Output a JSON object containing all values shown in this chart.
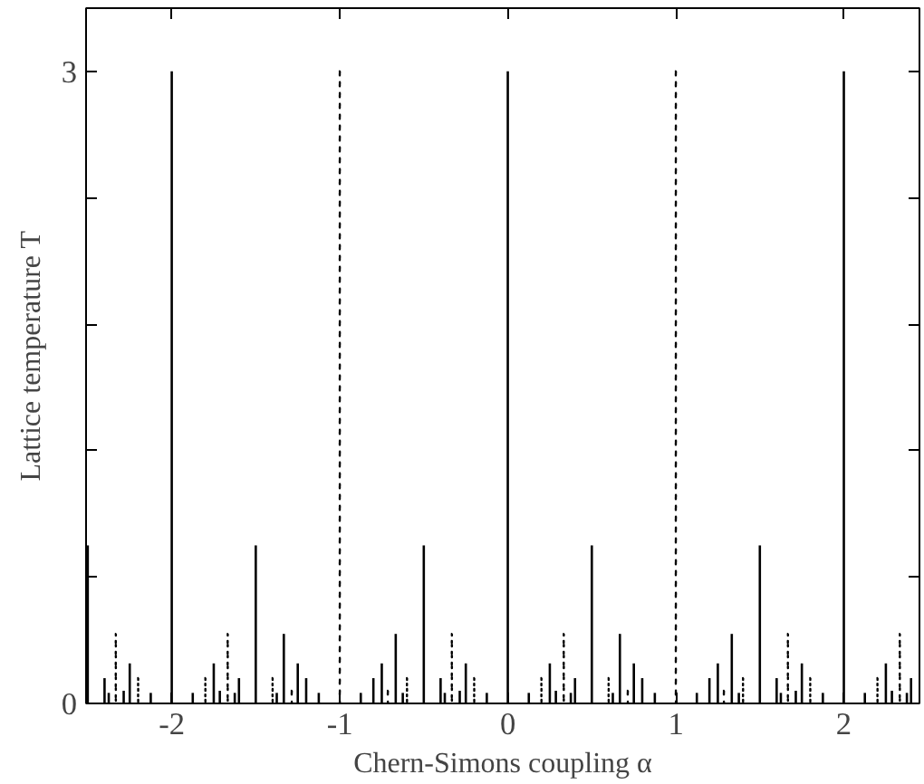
{
  "chart_data": {
    "type": "bar",
    "xlabel": "Chern-Simons coupling α",
    "ylabel": "Lattice temperature T",
    "xlim": [
      -2.51,
      2.45
    ],
    "ylim": [
      0,
      3.3
    ],
    "xticks": [
      -2,
      -1,
      0,
      1,
      2
    ],
    "yticks": [
      0,
      {
        "value": 0.6,
        "label": null
      },
      {
        "value": 1.2,
        "label": null
      },
      {
        "value": 1.8,
        "label": null
      },
      {
        "value": 2.4,
        "label": null
      },
      3
    ],
    "grid": false,
    "series": [
      {
        "color": "#000000",
        "line_style": "solid",
        "x": [
          -2.5,
          -2.4,
          -2.375,
          -2.286,
          -2.25,
          -2.125,
          -2,
          -1.875,
          -1.75,
          -1.714,
          -1.625,
          -1.6,
          -1.5,
          -1.375,
          -1.333,
          -1.25,
          -1.2,
          -1.125,
          -0.875,
          -0.8,
          -0.75,
          -0.667,
          -0.625,
          -0.5,
          -0.4,
          -0.375,
          -0.286,
          -0.25,
          -0.125,
          0,
          0.125,
          0.25,
          0.286,
          0.375,
          0.4,
          0.5,
          0.625,
          0.667,
          0.75,
          0.8,
          0.875,
          1.125,
          1.2,
          1.25,
          1.333,
          1.375,
          1.5,
          1.6,
          1.625,
          1.714,
          1.75,
          1.875,
          2,
          2.125,
          2.25,
          2.286,
          2.375,
          2.4
        ],
        "values": [
          0.75,
          0.12,
          0.05,
          0.06,
          0.19,
          0.05,
          3,
          0.05,
          0.19,
          0.06,
          0.05,
          0.12,
          0.75,
          0.05,
          0.33,
          0.19,
          0.12,
          0.05,
          0.05,
          0.12,
          0.19,
          0.33,
          0.05,
          0.75,
          0.12,
          0.05,
          0.06,
          0.19,
          0.05,
          3,
          0.05,
          0.19,
          0.06,
          0.05,
          0.12,
          0.75,
          0.05,
          0.33,
          0.19,
          0.12,
          0.05,
          0.05,
          0.12,
          0.19,
          0.33,
          0.05,
          0.75,
          0.12,
          0.05,
          0.06,
          0.19,
          0.05,
          3,
          0.05,
          0.19,
          0.06,
          0.05,
          0.12
        ]
      },
      {
        "color": "#000000",
        "line_style": "dotted",
        "x": [
          -2.333,
          -2.2,
          -1.8,
          -1.667,
          -1.4,
          -1.286,
          -1,
          -0.714,
          -0.6,
          -0.333,
          -0.2,
          0.2,
          0.333,
          0.6,
          0.714,
          1,
          1.286,
          1.4,
          1.667,
          1.8,
          2.2,
          2.333
        ],
        "values": [
          0.33,
          0.12,
          0.12,
          0.33,
          0.12,
          0.06,
          3,
          0.06,
          0.12,
          0.33,
          0.12,
          0.12,
          0.33,
          0.12,
          0.06,
          3,
          0.06,
          0.12,
          0.33,
          0.12,
          0.12,
          0.33
        ]
      }
    ]
  }
}
